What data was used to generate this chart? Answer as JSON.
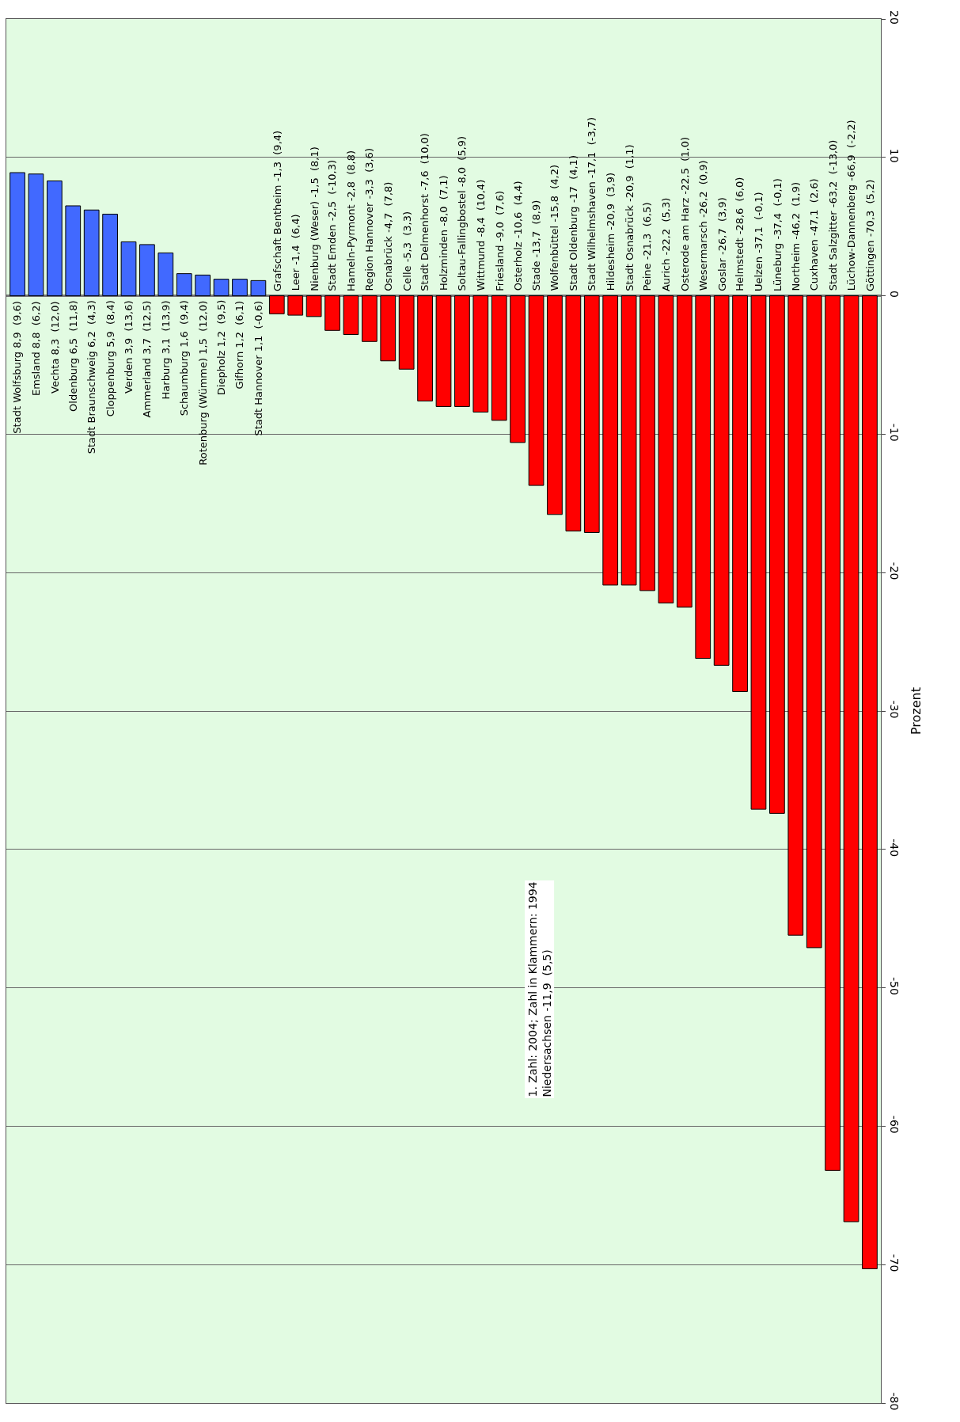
{
  "chart_data": {
    "type": "bar",
    "categories": [
      "Stadt Wolfsburg 8,9  (9,6)",
      "Emsland 8,8  (6,2)",
      "Vechta 8,3  (12,0)",
      "Oldenburg 6,5  (11,8)",
      "Stadt Braunschweig 6,2  (4,3)",
      "Cloppenburg 5,9  (8,4)",
      "Verden 3,9  (13,6)",
      "Ammerland 3,7  (12,5)",
      "Harburg 3,1  (13,9)",
      "Schaumburg 1,6  (9,4)",
      "Rotenburg (Wümme) 1,5  (12,0)",
      "Diepholz 1,2  (9,5)",
      "Gifhorn 1,2  (6,1)",
      "Stadt Hannover 1,1  (-0,6)",
      "Grafschaft Bentheim -1,3  (9,4)",
      "Leer -1,4  (6,4)",
      "Nienburg (Weser) -1,5  (8,1)",
      "Stadt Emden -2,5  (-10,3)",
      "Hameln-Pyrmont -2,8  (8,8)",
      "Region Hannover -3,3  (3,6)",
      "Osnabrück -4,7  (7,8)",
      "Celle -5,3  (3,3)",
      "Stadt Delmenhorst -7,6  (10,0)",
      "Holzminden -8,0  (7,1)",
      "Soltau-Fallingbostel -8,0  (5,9)",
      "Wittmund -8,4  (10,4)",
      "Friesland -9,0  (7,6)",
      "Osterholz -10,6  (4,4)",
      "Stade -13,7  (8,9)",
      "Wolfenbüttel -15,8  (4,2)",
      "Stadt Oldenburg -17  (4,1)",
      "Stadt Wilhelmshaven -17,1  (-3,7)",
      "Hildesheim -20,9  (3,9)",
      "Stadt Osnabrück -20,9  (1,1)",
      "Peine -21,3  (6,5)",
      "Aurich -22,2  (5,3)",
      "Osterode am Harz -22,5  (1,0)",
      "Wesermarsch -26,2  (0,9)",
      "Goslar -26,7  (3,9)",
      "Helmstedt -28,6  (6,0)",
      "Uelzen -37,1  (-0,1)",
      "Lüneburg -37,4  (-0,1)",
      "Northeim -46,2  (1,9)",
      "Cuxhaven -47,1  (2,6)",
      "Stadt Salzgitter -63,2  (-13,0)",
      "Lüchow-Dannenberg -66,9  (-2,2)",
      "Göttingen -70,3  (5,2)"
    ],
    "values": [
      8.9,
      8.8,
      8.3,
      6.5,
      6.2,
      5.9,
      3.9,
      3.7,
      3.1,
      1.6,
      1.5,
      1.2,
      1.2,
      1.1,
      -1.3,
      -1.4,
      -1.5,
      -2.5,
      -2.8,
      -3.3,
      -4.7,
      -5.3,
      -7.6,
      -8.0,
      -8.0,
      -8.4,
      -9.0,
      -10.6,
      -13.7,
      -15.8,
      -17,
      -17.1,
      -20.9,
      -20.9,
      -21.3,
      -22.2,
      -22.5,
      -26.2,
      -26.7,
      -28.6,
      -37.1,
      -37.4,
      -46.2,
      -47.1,
      -63.2,
      -66.9,
      -70.3
    ],
    "colors": [
      "#4169ff",
      "#4169ff",
      "#4169ff",
      "#4169ff",
      "#4169ff",
      "#4169ff",
      "#4169ff",
      "#4169ff",
      "#4169ff",
      "#4169ff",
      "#4169ff",
      "#4169ff",
      "#4169ff",
      "#4169ff",
      "#ff0000",
      "#ff0000",
      "#ff0000",
      "#ff0000",
      "#ff0000",
      "#ff0000",
      "#ff0000",
      "#ff0000",
      "#ff0000",
      "#ff0000",
      "#ff0000",
      "#ff0000",
      "#ff0000",
      "#ff0000",
      "#ff0000",
      "#ff0000",
      "#ff0000",
      "#ff0000",
      "#ff0000",
      "#ff0000",
      "#ff0000",
      "#ff0000",
      "#ff0000",
      "#ff0000",
      "#ff0000",
      "#ff0000",
      "#ff0000",
      "#ff0000",
      "#ff0000",
      "#ff0000",
      "#ff0000",
      "#ff0000",
      "#ff0000"
    ],
    "ylabel": "Prozent",
    "ylim": [
      -80,
      20
    ],
    "yticks": [
      -80,
      -70,
      -60,
      -50,
      -40,
      -30,
      -20,
      -10,
      0,
      10,
      20
    ],
    "grid": "y",
    "tick_labels": "y",
    "annotations": [
      "1. Zahl: 2004; Zahl in Klammern: 1994\nNiedersachsen -11,9  (5,5)"
    ]
  }
}
